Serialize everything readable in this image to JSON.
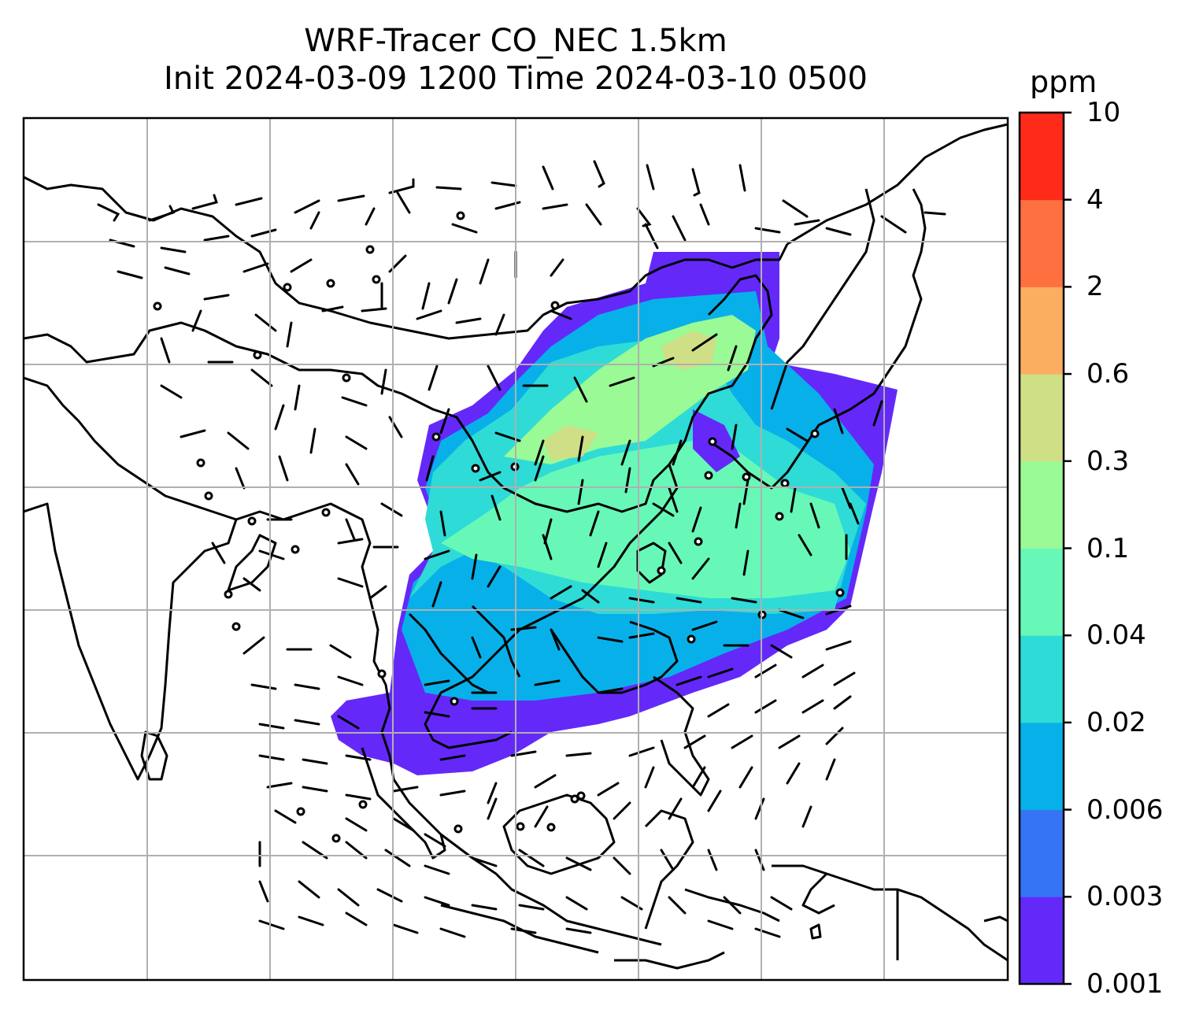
{
  "title": {
    "line1": "WRF-Tracer CO_NEC 1.5km",
    "line2": "Init 2024-03-09 1200 Time 2024-03-10 0500"
  },
  "colorbar": {
    "unit": "ppm",
    "levels": [
      "0.001",
      "0.003",
      "0.006",
      "0.02",
      "0.04",
      "0.1",
      "0.3",
      "0.6",
      "2",
      "4",
      "10"
    ],
    "colors": [
      "#6429f9",
      "#3574f4",
      "#08b0e9",
      "#2edbd6",
      "#67f8b8",
      "#99fa96",
      "#cedf86",
      "#fcae60",
      "#ff7040",
      "#ff2a1a"
    ]
  },
  "map": {
    "gridlines": "on",
    "wind_barbs": "on"
  }
}
